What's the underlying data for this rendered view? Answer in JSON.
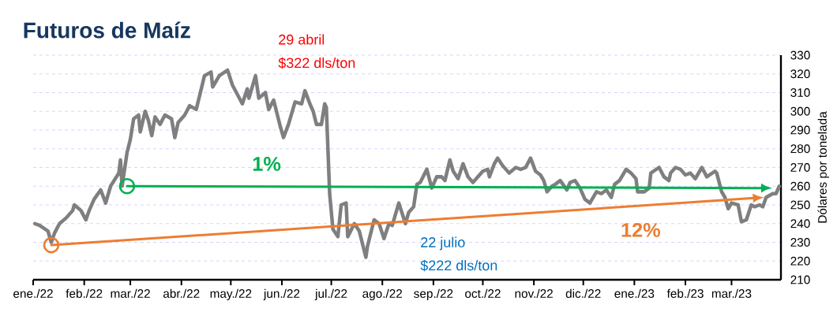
{
  "chart_data": {
    "type": "line",
    "title": "Futuros de Maíz",
    "ylabel": "Dólares por tonelada",
    "xlim": [
      "2022-01-01",
      "2023-03-31"
    ],
    "ylim": [
      210,
      330
    ],
    "xticks": [
      {
        "value": "2022-01-01",
        "label": "ene./22"
      },
      {
        "value": "2022-02-01",
        "label": "feb./22"
      },
      {
        "value": "2022-03-01",
        "label": "mar./22"
      },
      {
        "value": "2022-04-01",
        "label": "abr./22"
      },
      {
        "value": "2022-05-01",
        "label": "may./22"
      },
      {
        "value": "2022-06-01",
        "label": "jun./22"
      },
      {
        "value": "2022-07-01",
        "label": "jul./22"
      },
      {
        "value": "2022-08-01",
        "label": "ago./22"
      },
      {
        "value": "2022-09-01",
        "label": "sep./22"
      },
      {
        "value": "2022-10-01",
        "label": "oct./22"
      },
      {
        "value": "2022-11-01",
        "label": "nov./22"
      },
      {
        "value": "2022-12-01",
        "label": "dic./22"
      },
      {
        "value": "2023-01-01",
        "label": "ene./23"
      },
      {
        "value": "2023-02-01",
        "label": "feb./23"
      },
      {
        "value": "2023-03-01",
        "label": "mar./23"
      }
    ],
    "yticks": [
      210,
      220,
      230,
      240,
      250,
      260,
      270,
      280,
      290,
      300,
      310,
      320,
      330
    ],
    "grid": "y",
    "series": [
      {
        "color": "#7f7f7f",
        "marker": "none",
        "x": [
          "2022-01-02",
          "2022-01-05",
          "2022-01-10",
          "2022-01-12",
          "2022-01-14",
          "2022-01-17",
          "2022-01-21",
          "2022-01-25",
          "2022-01-26",
          "2022-01-30",
          "2022-02-02",
          "2022-02-04",
          "2022-02-07",
          "2022-02-11",
          "2022-02-14",
          "2022-02-17",
          "2022-02-22",
          "2022-02-23",
          "2022-02-24",
          "2022-02-27",
          "2022-03-01",
          "2022-03-03",
          "2022-03-06",
          "2022-03-07",
          "2022-03-10",
          "2022-03-12",
          "2022-03-14",
          "2022-03-16",
          "2022-03-19",
          "2022-03-22",
          "2022-03-26",
          "2022-03-28",
          "2022-03-30",
          "2022-04-03",
          "2022-04-06",
          "2022-04-10",
          "2022-04-15",
          "2022-04-19",
          "2022-04-20",
          "2022-04-24",
          "2022-04-29",
          "2022-05-02",
          "2022-05-08",
          "2022-05-11",
          "2022-05-12",
          "2022-05-16",
          "2022-05-18",
          "2022-05-22",
          "2022-05-24",
          "2022-05-27",
          "2022-05-31",
          "2022-06-02",
          "2022-06-05",
          "2022-06-09",
          "2022-06-13",
          "2022-06-15",
          "2022-06-18",
          "2022-06-20",
          "2022-06-22",
          "2022-06-25",
          "2022-06-27",
          "2022-06-28",
          "2022-06-30",
          "2022-07-02",
          "2022-07-05",
          "2022-07-07",
          "2022-07-10",
          "2022-07-11",
          "2022-07-15",
          "2022-07-18",
          "2022-07-22",
          "2022-07-23",
          "2022-07-27",
          "2022-07-30",
          "2022-08-02",
          "2022-08-05",
          "2022-08-07",
          "2022-08-11",
          "2022-08-15",
          "2022-08-17",
          "2022-08-20",
          "2022-08-22",
          "2022-08-24",
          "2022-08-28",
          "2022-08-31",
          "2022-09-03",
          "2022-09-06",
          "2022-09-08",
          "2022-09-11",
          "2022-09-13",
          "2022-09-16",
          "2022-09-19",
          "2022-09-22",
          "2022-09-25",
          "2022-09-28",
          "2022-10-01",
          "2022-10-04",
          "2022-10-05",
          "2022-10-08",
          "2022-10-10",
          "2022-10-13",
          "2022-10-17",
          "2022-10-21",
          "2022-10-24",
          "2022-10-27",
          "2022-10-30",
          "2022-11-02",
          "2022-11-05",
          "2022-11-07",
          "2022-11-09",
          "2022-11-12",
          "2022-11-14",
          "2022-11-17",
          "2022-11-21",
          "2022-11-23",
          "2022-11-26",
          "2022-11-29",
          "2022-12-02",
          "2022-12-05",
          "2022-12-09",
          "2022-12-12",
          "2022-12-15",
          "2022-12-18",
          "2022-12-20",
          "2022-12-23",
          "2022-12-27",
          "2022-12-30",
          "2023-01-02",
          "2023-01-03",
          "2023-01-07",
          "2023-01-10",
          "2023-01-11",
          "2023-01-16",
          "2023-01-19",
          "2023-01-22",
          "2023-01-23",
          "2023-01-26",
          "2023-01-29",
          "2023-02-01",
          "2023-02-04",
          "2023-02-07",
          "2023-02-11",
          "2023-02-14",
          "2023-02-19",
          "2023-02-20",
          "2023-02-23",
          "2023-02-25",
          "2023-02-27",
          "2023-03-01",
          "2023-03-05",
          "2023-03-07",
          "2023-03-10",
          "2023-03-13",
          "2023-03-15",
          "2023-03-18",
          "2023-03-20",
          "2023-03-22",
          "2023-03-26",
          "2023-03-28",
          "2023-03-30"
        ],
        "values": [
          240,
          239,
          236,
          230,
          235,
          240,
          243,
          247,
          250,
          247,
          242,
          247,
          253,
          258,
          251,
          260,
          267,
          274,
          260,
          278,
          285,
          296,
          298,
          289,
          300,
          295,
          287,
          297,
          293,
          298,
          296,
          286,
          294,
          298,
          303,
          301,
          319,
          321,
          313,
          319,
          322,
          314,
          304,
          312,
          307,
          319,
          307,
          310,
          301,
          306,
          292,
          286,
          293,
          305,
          304,
          311,
          304,
          300,
          293,
          293,
          304,
          302,
          256,
          237,
          233,
          250,
          251,
          233,
          240,
          236,
          222,
          228,
          242,
          240,
          232,
          240,
          239,
          251,
          240,
          246,
          249,
          261,
          262,
          269,
          259,
          265,
          265,
          263,
          274,
          268,
          264,
          272,
          265,
          262,
          265,
          268,
          269,
          265,
          272,
          275,
          271,
          267,
          270,
          269,
          270,
          275,
          268,
          266,
          263,
          257,
          260,
          261,
          263,
          258,
          262,
          263,
          259,
          253,
          251,
          257,
          256,
          258,
          254,
          261,
          263,
          269,
          267,
          264,
          257,
          257,
          259,
          267,
          270,
          265,
          263,
          267,
          270,
          269,
          266,
          267,
          264,
          270,
          265,
          268,
          267,
          257,
          254,
          248,
          251,
          250,
          241,
          242,
          250,
          249,
          250,
          249,
          254,
          256,
          256,
          260
        ]
      },
      {
        "name": "12%",
        "color": "#ed7d31",
        "marker": "circle",
        "x": [
          "2022-01-12",
          "2023-03-14"
        ],
        "values": [
          228.5,
          253.6
        ]
      },
      {
        "name": "1%",
        "color": "#00b050",
        "marker": "circle",
        "x": [
          "2022-02-27",
          "2023-03-19"
        ],
        "values": [
          260,
          259
        ]
      }
    ],
    "annotations": [
      "29 abril",
      "$322 dls/ton",
      "22 julio",
      "$222 dls/ton"
    ]
  }
}
